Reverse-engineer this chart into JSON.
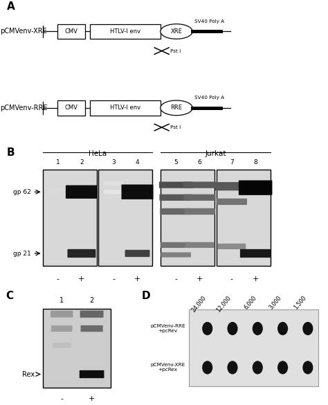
{
  "bg_color": "#ffffff",
  "panel_A": {
    "xre_label": "pCMVenv-XRE",
    "rre_label": "pCMVenv-RRE",
    "cmv_text": "CMV",
    "env_text": "HTLV-I env",
    "sv40_text": "SV40 Poly A",
    "pst_text": "Pst I",
    "xre_text": "XRE",
    "rre_text": "RRE"
  },
  "panel_B": {
    "hela_label": "HeLa",
    "jurkat_label": "Jurkat",
    "gp62_label": "gp 62",
    "gp21_label": "gp 21",
    "lane_labels": [
      "1",
      "2",
      "3",
      "4",
      "5",
      "6",
      "7",
      "8"
    ],
    "plus_minus": [
      "-",
      "+",
      "-",
      "+",
      "-",
      "+",
      "-",
      "+"
    ],
    "gel_bg": "#d8d8d8",
    "gel_bg2": "#c8c8c8"
  },
  "panel_C": {
    "rex_label": "Rex",
    "lanes": [
      "1",
      "2"
    ],
    "plus_minus": [
      "-",
      "+"
    ],
    "gel_bg": "#cccccc"
  },
  "panel_D": {
    "concentrations": [
      "24,000",
      "12,000",
      "6,000",
      "3,000",
      "1,500"
    ],
    "row1": "pCMVenv-RRE\n+pcRev",
    "row2": "pCMVenv-XRE\n+pcRex",
    "dot_color": "#111111",
    "bg_color": "#e0e0e0"
  }
}
